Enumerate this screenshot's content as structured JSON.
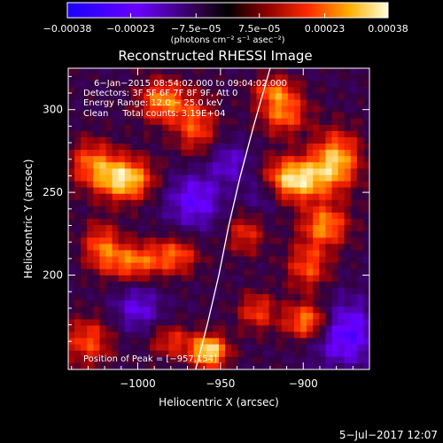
{
  "chart_data": {
    "type": "heatmap",
    "title": "Reconstructed RHESSI Image",
    "xlabel": "Heliocentric X (arcsec)",
    "ylabel": "Heliocentric Y (arcsec)",
    "xlim": [
      -1042,
      -860
    ],
    "ylim": [
      143,
      325
    ],
    "x_ticks": [
      {
        "v": -1000,
        "label": "−1000"
      },
      {
        "v": -950,
        "label": "−950"
      },
      {
        "v": -900,
        "label": "−900"
      }
    ],
    "y_ticks": [
      {
        "v": 300,
        "label": "300"
      },
      {
        "v": 250,
        "label": "250"
      },
      {
        "v": 200,
        "label": "200"
      }
    ],
    "colorbar": {
      "min": -0.00038,
      "max": 0.00038,
      "tick_labels": [
        "−0.00038",
        "−0.00023",
        "−7.5e−05",
        "7.5e−05",
        "0.00023",
        "0.00038"
      ],
      "tick_values": [
        -0.00038,
        -0.00023,
        -7.5e-05,
        7.5e-05,
        0.00023,
        0.00038
      ],
      "units_label": "(photons cm⁻² s⁻¹ asec⁻²)"
    },
    "info_lines": [
      "6−Jan−2015 08:54:02.000 to 09:04:02.000",
      "Detectors: 3F 5F 6F 7F 8F 9F, Att 0",
      "Energy Range: 12.0 − 25.0 keV",
      "Clean     Total counts: 3.19E+04"
    ],
    "peak_label": "Position of Peak = [−957,154]",
    "peak": {
      "x": -957,
      "y": 154
    },
    "limb_curve": [
      {
        "x": -965,
        "y": 143
      },
      {
        "x": -958,
        "y": 170
      },
      {
        "x": -951,
        "y": 200
      },
      {
        "x": -945,
        "y": 230
      },
      {
        "x": -938,
        "y": 260
      },
      {
        "x": -930,
        "y": 290
      },
      {
        "x": -920,
        "y": 325
      }
    ],
    "sources": [
      {
        "x": -1008,
        "y": 258,
        "a": 0.95,
        "rx": 12,
        "ry": 9
      },
      {
        "x": -1028,
        "y": 268,
        "a": 0.55,
        "rx": 10,
        "ry": 10
      },
      {
        "x": -985,
        "y": 305,
        "a": 0.7,
        "rx": 10,
        "ry": 9
      },
      {
        "x": -965,
        "y": 290,
        "a": 0.55,
        "rx": 9,
        "ry": 12
      },
      {
        "x": -1022,
        "y": 218,
        "a": 0.55,
        "rx": 8,
        "ry": 10
      },
      {
        "x": -1003,
        "y": 208,
        "a": 0.65,
        "rx": 12,
        "ry": 8
      },
      {
        "x": -977,
        "y": 212,
        "a": 0.55,
        "rx": 10,
        "ry": 8
      },
      {
        "x": -957,
        "y": 154,
        "a": 1.0,
        "rx": 8,
        "ry": 7
      },
      {
        "x": -905,
        "y": 258,
        "a": 1.0,
        "rx": 14,
        "ry": 9
      },
      {
        "x": -880,
        "y": 270,
        "a": 0.8,
        "rx": 10,
        "ry": 12
      },
      {
        "x": -912,
        "y": 298,
        "a": 0.65,
        "rx": 10,
        "ry": 9
      },
      {
        "x": -887,
        "y": 230,
        "a": 0.7,
        "rx": 10,
        "ry": 9
      },
      {
        "x": -897,
        "y": 205,
        "a": 0.55,
        "rx": 9,
        "ry": 10
      },
      {
        "x": -897,
        "y": 172,
        "a": 0.8,
        "rx": 10,
        "ry": 8
      },
      {
        "x": -928,
        "y": 178,
        "a": 0.5,
        "rx": 8,
        "ry": 8
      },
      {
        "x": -1030,
        "y": 160,
        "a": 0.55,
        "rx": 10,
        "ry": 10
      },
      {
        "x": -980,
        "y": 160,
        "a": 0.45,
        "rx": 9,
        "ry": 7
      },
      {
        "x": -935,
        "y": 225,
        "a": 0.45,
        "rx": 8,
        "ry": 9
      },
      {
        "x": -918,
        "y": 312,
        "a": 0.5,
        "rx": 9,
        "ry": 6
      },
      {
        "x": -966,
        "y": 245,
        "a": -0.55,
        "rx": 12,
        "ry": 12
      },
      {
        "x": -875,
        "y": 165,
        "a": -0.65,
        "rx": 14,
        "ry": 14
      },
      {
        "x": -1000,
        "y": 180,
        "a": -0.45,
        "rx": 10,
        "ry": 10
      },
      {
        "x": -944,
        "y": 268,
        "a": -0.4,
        "rx": 9,
        "ry": 9
      },
      {
        "x": -925,
        "y": 250,
        "a": -0.35,
        "rx": 8,
        "ry": 9
      }
    ]
  },
  "footer": {
    "date": "5−Jul−2017 12:07"
  }
}
